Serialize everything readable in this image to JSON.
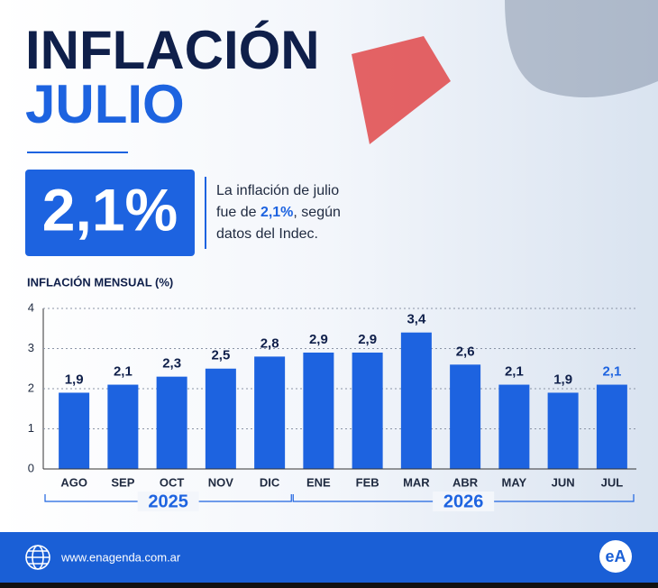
{
  "header": {
    "title": "INFLACIÓN",
    "subtitle": "JULIO",
    "headline": "2,1%",
    "description": [
      "La inflación de julio",
      "fue de ",
      "2,1%",
      ", según",
      "datos del Indec."
    ]
  },
  "chart_data": {
    "type": "bar",
    "title": "INFLACIÓN MENSUAL (%)",
    "categories": [
      "AGO",
      "SEP",
      "OCT",
      "NOV",
      "DIC",
      "ENE",
      "FEB",
      "MAR",
      "ABR",
      "MAY",
      "JUN",
      "JUL"
    ],
    "values": [
      1.9,
      2.1,
      2.3,
      2.5,
      2.8,
      2.9,
      2.9,
      3.4,
      2.6,
      2.1,
      1.9,
      2.1
    ],
    "value_labels": [
      "1,9",
      "2,1",
      "2,3",
      "2,5",
      "2,8",
      "2,9",
      "2,9",
      "3,4",
      "2,6",
      "2,1",
      "1,9",
      "2,1"
    ],
    "color": "#1d63e0",
    "label_color": "#0f1f4a",
    "highlight_label_color": "#1d63e0",
    "ylim": [
      0,
      4
    ],
    "yticks": [
      0,
      1,
      2,
      3,
      4
    ],
    "grid": true,
    "groups": [
      {
        "label": "2025",
        "from": "AGO",
        "to": "DIC"
      },
      {
        "label": "2026",
        "from": "ENE",
        "to": "JUL"
      }
    ]
  },
  "footer": {
    "website": "www.enagenda.com.ar",
    "logo": "eA"
  }
}
